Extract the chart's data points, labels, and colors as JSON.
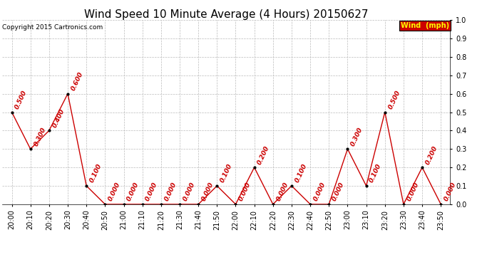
{
  "title": "Wind Speed 10 Minute Average (4 Hours) 20150627",
  "copyright": "Copyright 2015 Cartronics.com",
  "legend_label": "Wind  (mph)",
  "x_labels": [
    "20:00",
    "20:10",
    "20:20",
    "20:30",
    "20:40",
    "20:50",
    "21:00",
    "21:10",
    "21:20",
    "21:30",
    "21:40",
    "21:50",
    "22:00",
    "22:10",
    "22:20",
    "22:30",
    "22:40",
    "22:50",
    "23:00",
    "23:10",
    "23:20",
    "23:30",
    "23:40",
    "23:50"
  ],
  "y_values": [
    0.5,
    0.3,
    0.4,
    0.6,
    0.1,
    0.0,
    0.0,
    0.0,
    0.0,
    0.0,
    0.0,
    0.1,
    0.0,
    0.2,
    0.0,
    0.1,
    0.0,
    0.0,
    0.3,
    0.1,
    0.5,
    0.0,
    0.2,
    0.0
  ],
  "line_color": "#cc0000",
  "marker_color": "#000000",
  "label_color": "#cc0000",
  "bg_color": "#ffffff",
  "grid_color": "#bbbbbb",
  "legend_bg": "#cc0000",
  "legend_text_color": "#ffff00",
  "ylim": [
    0.0,
    1.0
  ],
  "yticks": [
    0.0,
    0.1,
    0.2,
    0.3,
    0.4,
    0.5,
    0.6,
    0.7,
    0.8,
    0.9,
    1.0
  ],
  "title_fontsize": 11,
  "label_fontsize": 6.5,
  "tick_fontsize": 7,
  "copyright_fontsize": 6.5,
  "legend_fontsize": 7
}
